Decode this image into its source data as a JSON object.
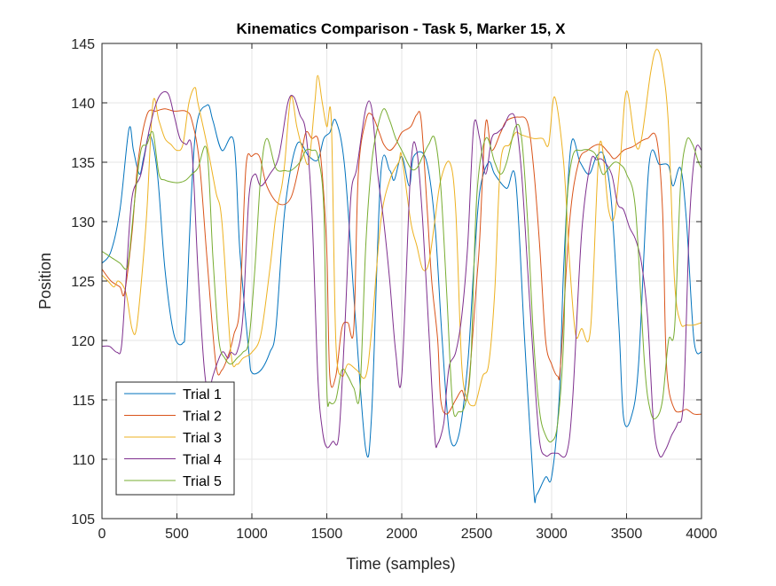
{
  "chart_data": {
    "type": "line",
    "title": "Kinematics Comparison - Task 5, Marker 15, X",
    "xlabel": "Time (samples)",
    "ylabel": "Position",
    "xlim": [
      0,
      4000
    ],
    "ylim": [
      105,
      145
    ],
    "xticks": [
      0,
      500,
      1000,
      1500,
      2000,
      2500,
      3000,
      3500,
      4000
    ],
    "yticks": [
      105,
      110,
      115,
      120,
      125,
      130,
      135,
      140,
      145
    ],
    "grid": true,
    "legend_position": "bottom-left",
    "series": [
      {
        "name": "Trial 1",
        "color": "#0072BD",
        "x": [
          0,
          60,
          120,
          180,
          210,
          250,
          280,
          320,
          370,
          420,
          480,
          540,
          560,
          620,
          700,
          740,
          800,
          880,
          920,
          980,
          1000,
          1060,
          1120,
          1160,
          1220,
          1300,
          1380,
          1440,
          1480,
          1520,
          1560,
          1620,
          1690,
          1760,
          1800,
          1860,
          1920,
          1950,
          2000,
          2050,
          2080,
          2160,
          2220,
          2270,
          2320,
          2380,
          2440,
          2480,
          2520,
          2580,
          2620,
          2700,
          2760,
          2820,
          2880,
          2900,
          2960,
          3000,
          3050,
          3080,
          3130,
          3190,
          3250,
          3300,
          3350,
          3400,
          3450,
          3480,
          3530,
          3580,
          3650,
          3720,
          3780,
          3810,
          3860,
          3900,
          3950,
          4000
        ],
        "y": [
          126.5,
          127.5,
          131.0,
          137.8,
          136.0,
          134.0,
          135.5,
          137.3,
          134.0,
          126.0,
          120.5,
          119.8,
          122.0,
          137.0,
          139.8,
          138.5,
          136.0,
          136.7,
          127.5,
          119.0,
          117.3,
          117.5,
          119.0,
          121.0,
          131.0,
          136.5,
          135.5,
          135.2,
          137.0,
          137.5,
          138.5,
          134.5,
          122.0,
          110.8,
          114.0,
          134.0,
          134.3,
          133.5,
          135.5,
          133.0,
          135.5,
          135.3,
          130.0,
          120.0,
          112.0,
          112.0,
          118.0,
          126.0,
          132.5,
          135.0,
          134.0,
          132.8,
          133.5,
          120.0,
          107.5,
          107.0,
          108.5,
          108.5,
          115.0,
          126.0,
          136.5,
          135.0,
          134.0,
          135.5,
          135.5,
          131.5,
          121.0,
          113.5,
          113.5,
          118.0,
          134.8,
          134.8,
          134.7,
          133.0,
          134.5,
          130.0,
          120.0,
          119.0
        ]
      },
      {
        "name": "Trial 2",
        "color": "#D95319",
        "x": [
          0,
          60,
          120,
          150,
          200,
          240,
          300,
          360,
          420,
          480,
          560,
          600,
          650,
          700,
          760,
          800,
          850,
          880,
          920,
          960,
          1000,
          1050,
          1100,
          1180,
          1260,
          1320,
          1360,
          1400,
          1440,
          1470,
          1500,
          1520,
          1560,
          1600,
          1640,
          1680,
          1710,
          1760,
          1800,
          1850,
          1880,
          1920,
          1960,
          2000,
          2060,
          2100,
          2130,
          2170,
          2200,
          2240,
          2260,
          2300,
          2360,
          2400,
          2440,
          2500,
          2520,
          2560,
          2600,
          2660,
          2700,
          2780,
          2840,
          2880,
          2920,
          2960,
          3000,
          3040,
          3060,
          3120,
          3180,
          3240,
          3320,
          3380,
          3420,
          3480,
          3540,
          3600,
          3640,
          3700,
          3740,
          3760,
          3780,
          3820,
          3860,
          3900,
          3950,
          4000
        ],
        "y": [
          126.0,
          125.0,
          124.5,
          124.0,
          129.0,
          135.0,
          139.0,
          139.3,
          139.5,
          139.3,
          139.3,
          138.5,
          135.0,
          127.0,
          118.0,
          117.5,
          119.0,
          120.5,
          123.0,
          134.5,
          135.5,
          135.5,
          133.0,
          131.5,
          132.0,
          135.0,
          137.5,
          137.0,
          137.0,
          134.0,
          127.5,
          117.0,
          117.0,
          121.0,
          121.5,
          121.0,
          134.0,
          138.5,
          139.0,
          137.5,
          136.5,
          136.0,
          136.5,
          137.5,
          138.0,
          139.0,
          138.5,
          131.0,
          125.0,
          120.0,
          115.0,
          113.8,
          115.0,
          115.8,
          115.5,
          125.0,
          128.5,
          138.3,
          136.0,
          137.5,
          138.5,
          138.8,
          138.3,
          134.5,
          128.0,
          120.0,
          118.0,
          117.0,
          118.0,
          130.0,
          135.0,
          136.0,
          136.5,
          135.8,
          135.3,
          136.0,
          136.3,
          136.8,
          137.0,
          137.0,
          131.0,
          120.0,
          116.0,
          114.2,
          114.0,
          114.2,
          113.8,
          113.8
        ]
      },
      {
        "name": "Trial 3",
        "color": "#EDB120",
        "x": [
          0,
          40,
          80,
          110,
          160,
          200,
          230,
          270,
          300,
          340,
          380,
          420,
          460,
          500,
          540,
          580,
          620,
          640,
          700,
          760,
          800,
          860,
          900,
          940,
          1000,
          1060,
          1120,
          1160,
          1200,
          1220,
          1260,
          1300,
          1340,
          1380,
          1420,
          1440,
          1470,
          1500,
          1530,
          1560,
          1600,
          1640,
          1700,
          1760,
          1800,
          1860,
          1920,
          1980,
          2000,
          2060,
          2100,
          2140,
          2180,
          2220,
          2260,
          2320,
          2360,
          2400,
          2440,
          2480,
          2500,
          2540,
          2580,
          2620,
          2660,
          2720,
          2760,
          2800,
          2880,
          2940,
          2980,
          3020,
          3080,
          3120,
          3160,
          3200,
          3260,
          3320,
          3380,
          3420,
          3460,
          3500,
          3560,
          3600,
          3660,
          3700,
          3740,
          3780,
          3820,
          3860,
          3900,
          3950,
          4000
        ],
        "y": [
          125.5,
          125.0,
          124.5,
          125.0,
          124.0,
          121.0,
          121.0,
          126.0,
          131.0,
          140.0,
          138.5,
          137.0,
          136.5,
          136.0,
          136.5,
          140.0,
          141.3,
          140.0,
          136.5,
          132.5,
          130.0,
          119.0,
          118.0,
          118.5,
          119.0,
          120.5,
          126.0,
          130.5,
          133.0,
          135.0,
          140.5,
          138.0,
          136.0,
          135.0,
          140.0,
          142.3,
          140.0,
          138.0,
          138.5,
          120.0,
          117.0,
          118.0,
          117.5,
          117.0,
          121.0,
          130.0,
          133.5,
          135.0,
          135.5,
          130.0,
          128.0,
          126.0,
          126.5,
          130.0,
          133.5,
          135.0,
          131.0,
          118.0,
          115.0,
          114.5,
          115.0,
          117.0,
          118.0,
          124.0,
          135.0,
          136.5,
          137.5,
          137.3,
          137.0,
          137.0,
          136.5,
          140.5,
          135.0,
          126.5,
          120.5,
          121.0,
          121.0,
          136.5,
          131.0,
          130.5,
          135.5,
          141.0,
          136.5,
          137.0,
          142.5,
          144.5,
          143.0,
          138.0,
          125.0,
          121.5,
          121.3,
          121.3,
          121.5
        ]
      },
      {
        "name": "Trial 4",
        "color": "#7E2F8E",
        "x": [
          0,
          50,
          100,
          130,
          160,
          200,
          260,
          320,
          380,
          440,
          480,
          520,
          560,
          600,
          640,
          680,
          710,
          740,
          800,
          840,
          860,
          900,
          940,
          980,
          1020,
          1060,
          1120,
          1180,
          1240,
          1280,
          1320,
          1360,
          1400,
          1440,
          1470,
          1500,
          1540,
          1580,
          1620,
          1660,
          1700,
          1760,
          1800,
          1840,
          1880,
          1920,
          1960,
          2000,
          2060,
          2100,
          2140,
          2180,
          2220,
          2240,
          2280,
          2300,
          2320,
          2360,
          2400,
          2440,
          2480,
          2520,
          2560,
          2600,
          2640,
          2680,
          2720,
          2760,
          2800,
          2840,
          2880,
          2920,
          2960,
          3000,
          3040,
          3100,
          3140,
          3200,
          3260,
          3300,
          3340,
          3400,
          3440,
          3480,
          3520,
          3560,
          3600,
          3640,
          3680,
          3720,
          3760,
          3800,
          3840,
          3880,
          3920,
          3960,
          4000
        ],
        "y": [
          119.5,
          119.5,
          119.0,
          119.5,
          125.0,
          132.0,
          134.0,
          138.0,
          140.5,
          140.8,
          139.0,
          137.0,
          136.5,
          136.0,
          126.0,
          118.0,
          115.5,
          117.0,
          119.0,
          118.5,
          119.0,
          119.0,
          122.0,
          132.0,
          134.0,
          133.0,
          134.0,
          135.5,
          140.0,
          140.5,
          139.0,
          137.5,
          131.0,
          117.0,
          112.5,
          111.0,
          111.5,
          112.0,
          121.0,
          132.0,
          134.5,
          139.5,
          139.5,
          134.0,
          130.0,
          125.0,
          119.0,
          117.0,
          134.5,
          136.0,
          130.0,
          121.0,
          112.0,
          111.3,
          113.0,
          116.0,
          118.0,
          119.0,
          122.0,
          128.0,
          138.0,
          137.0,
          134.0,
          137.0,
          137.5,
          138.0,
          139.0,
          138.5,
          134.0,
          126.0,
          118.0,
          111.5,
          110.3,
          110.5,
          110.5,
          110.5,
          115.0,
          129.0,
          135.0,
          135.2,
          135.2,
          134.0,
          131.5,
          131.0,
          129.5,
          128.5,
          126.5,
          122.0,
          113.0,
          110.3,
          110.8,
          112.0,
          113.0,
          115.0,
          130.0,
          136.0,
          136.0
        ]
      },
      {
        "name": "Trial 5",
        "color": "#77AC30",
        "x": [
          0,
          60,
          120,
          160,
          180,
          220,
          260,
          300,
          340,
          380,
          420,
          480,
          520,
          560,
          600,
          640,
          700,
          740,
          780,
          820,
          860,
          900,
          940,
          980,
          1020,
          1060,
          1100,
          1160,
          1220,
          1260,
          1320,
          1360,
          1400,
          1440,
          1480,
          1500,
          1520,
          1560,
          1600,
          1640,
          1680,
          1720,
          1760,
          1800,
          1840,
          1880,
          1920,
          1960,
          2000,
          2060,
          2100,
          2140,
          2180,
          2220,
          2260,
          2300,
          2340,
          2380,
          2420,
          2460,
          2500,
          2560,
          2620,
          2660,
          2700,
          2760,
          2800,
          2840,
          2880,
          2920,
          2960,
          3000,
          3040,
          3080,
          3100,
          3140,
          3200,
          3260,
          3300,
          3340,
          3380,
          3420,
          3460,
          3500,
          3560,
          3620,
          3660,
          3700,
          3740,
          3780,
          3820,
          3860,
          3900,
          3940,
          3980,
          4000
        ],
        "y": [
          127.5,
          127.0,
          126.5,
          126.0,
          127.0,
          132.0,
          136.0,
          136.5,
          137.5,
          134.0,
          133.5,
          133.3,
          133.3,
          133.5,
          134.0,
          134.5,
          136.0,
          127.0,
          120.0,
          118.5,
          118.0,
          118.5,
          119.0,
          120.0,
          126.0,
          134.0,
          137.0,
          134.5,
          134.3,
          134.3,
          135.0,
          136.0,
          136.0,
          135.5,
          131.0,
          116.0,
          114.8,
          115.0,
          117.5,
          117.0,
          116.0,
          115.5,
          128.0,
          135.0,
          138.0,
          139.5,
          138.5,
          137.0,
          136.0,
          134.5,
          134.5,
          135.5,
          136.5,
          137.0,
          133.0,
          124.0,
          114.5,
          114.0,
          114.5,
          118.0,
          132.0,
          137.0,
          135.0,
          134.0,
          135.0,
          138.0,
          137.0,
          130.0,
          120.0,
          114.0,
          112.0,
          111.5,
          113.0,
          120.0,
          131.0,
          135.5,
          136.0,
          136.0,
          135.5,
          134.0,
          134.5,
          135.0,
          134.8,
          134.0,
          131.0,
          118.0,
          114.0,
          113.5,
          115.0,
          120.0,
          121.0,
          133.0,
          136.8,
          136.5,
          135.0,
          134.5
        ]
      }
    ]
  }
}
